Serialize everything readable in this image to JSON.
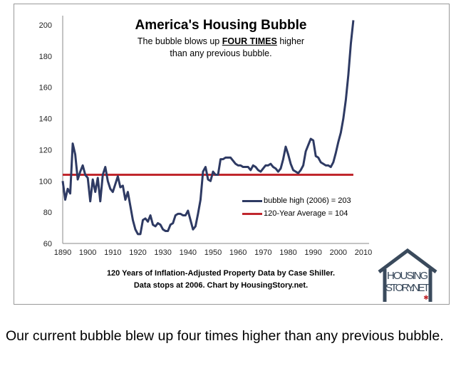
{
  "chart_data": {
    "type": "line",
    "title": "America's Housing Bubble",
    "subtitle_pre": "The bubble blows up",
    "subtitle_emph": "FOUR TIMES",
    "subtitle_post": "higher",
    "subtitle_line2": "than any previous bubble.",
    "footnote_line1": "120 Years of Inflation-Adjusted Property Data by Case Shiller.",
    "footnote_line2": "Data stops at 2006. Chart by HousingStory.net.",
    "xlim": [
      1890,
      2010
    ],
    "ylim": [
      60,
      210
    ],
    "x_ticks": [
      1890,
      1900,
      1910,
      1920,
      1930,
      1940,
      1950,
      1960,
      1970,
      1980,
      1990,
      2000,
      2010
    ],
    "y_ticks": [
      60,
      80,
      100,
      120,
      140,
      160,
      180,
      200
    ],
    "grid": false,
    "legend_placement": "center-right",
    "series": [
      {
        "name": "bubble high (2006) = 203",
        "color": "#2e3a63",
        "x": [
          1890,
          1891,
          1892,
          1893,
          1894,
          1895,
          1896,
          1897,
          1898,
          1899,
          1900,
          1901,
          1902,
          1903,
          1904,
          1905,
          1906,
          1907,
          1908,
          1909,
          1910,
          1911,
          1912,
          1913,
          1914,
          1915,
          1916,
          1917,
          1918,
          1919,
          1920,
          1921,
          1922,
          1923,
          1924,
          1925,
          1926,
          1927,
          1928,
          1929,
          1930,
          1931,
          1932,
          1933,
          1934,
          1935,
          1936,
          1937,
          1938,
          1939,
          1940,
          1941,
          1942,
          1943,
          1944,
          1945,
          1946,
          1947,
          1948,
          1949,
          1950,
          1951,
          1952,
          1953,
          1954,
          1955,
          1956,
          1957,
          1958,
          1959,
          1960,
          1961,
          1962,
          1963,
          1964,
          1965,
          1966,
          1967,
          1968,
          1969,
          1970,
          1971,
          1972,
          1973,
          1974,
          1975,
          1976,
          1977,
          1978,
          1979,
          1980,
          1981,
          1982,
          1983,
          1984,
          1985,
          1986,
          1987,
          1988,
          1989,
          1990,
          1991,
          1992,
          1993,
          1994,
          1995,
          1996,
          1997,
          1998,
          1999,
          2000,
          2001,
          2002,
          2003,
          2004,
          2005,
          2006
        ],
        "values": [
          100,
          88,
          95,
          92,
          124,
          117,
          101,
          106,
          110,
          104,
          102,
          87,
          101,
          93,
          102,
          87,
          104,
          109,
          100,
          95,
          93,
          98,
          103,
          96,
          97,
          88,
          93,
          84,
          75,
          69,
          66,
          66,
          75,
          76,
          74,
          78,
          72,
          71,
          73,
          72,
          69,
          68,
          68,
          72,
          73,
          78,
          79,
          79,
          78,
          78,
          81,
          75,
          69,
          71,
          79,
          88,
          106,
          109,
          101,
          100,
          106,
          104,
          104,
          114,
          114,
          115,
          115,
          115,
          113,
          111,
          110,
          110,
          109,
          109,
          109,
          107,
          110,
          109,
          107,
          106,
          108,
          110,
          110,
          111,
          109,
          108,
          106,
          108,
          114,
          122,
          117,
          111,
          107,
          106,
          105,
          107,
          110,
          119,
          123,
          127,
          126,
          116,
          115,
          112,
          111,
          110,
          110,
          109,
          112,
          118,
          125,
          131,
          140,
          152,
          168,
          188,
          203
        ]
      },
      {
        "name": "120-Year Average = 104",
        "color": "#c0272d",
        "x": [
          1890,
          2006
        ],
        "values": [
          104,
          104
        ]
      }
    ]
  },
  "logo": {
    "line1": "HOUSING",
    "line2": "STORY.NET"
  },
  "caption": "Our current bubble blew up four times higher than any previous bubble."
}
